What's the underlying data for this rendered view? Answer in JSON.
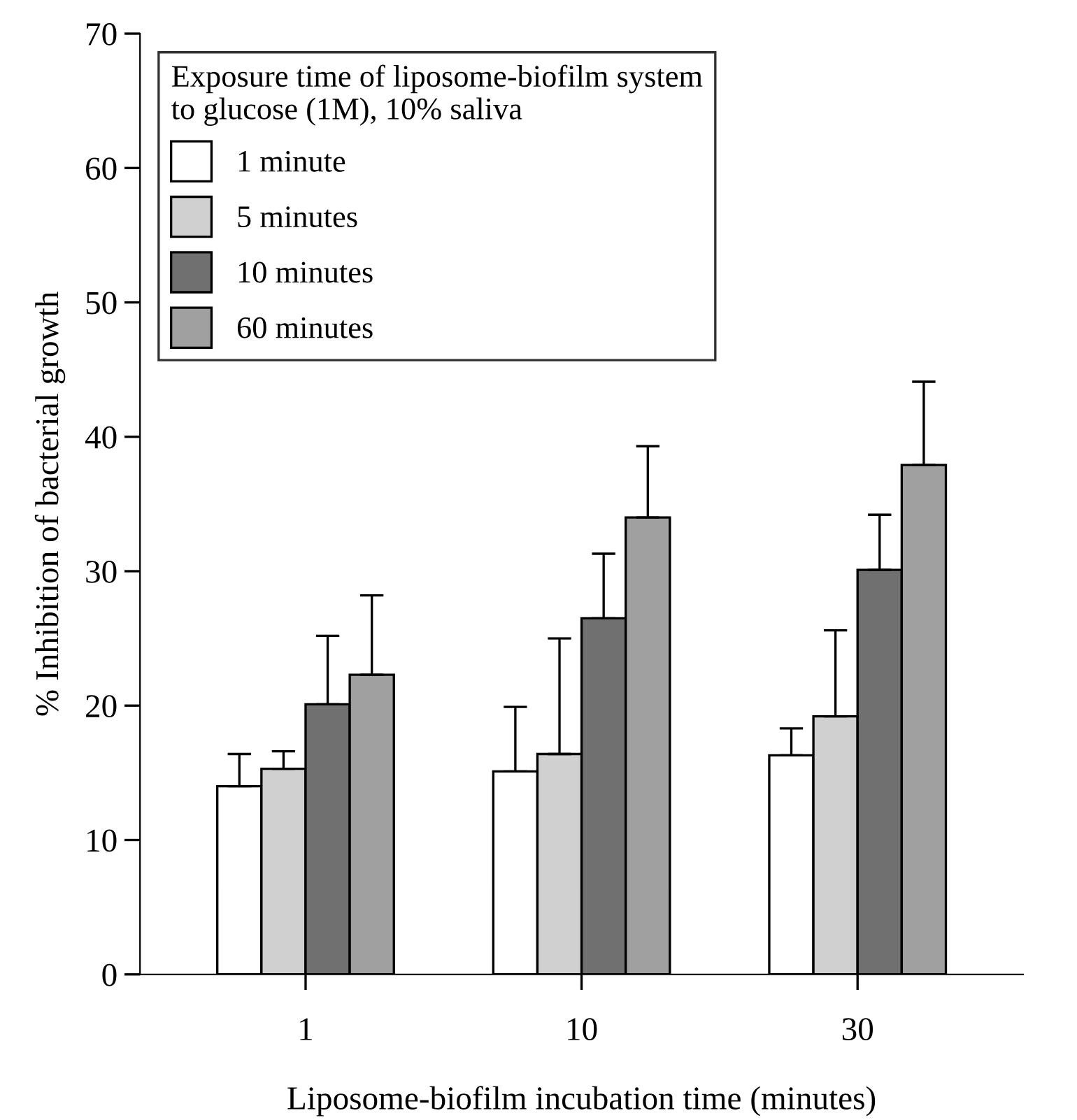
{
  "chart_data": {
    "type": "bar",
    "xlabel": "Liposome-biofilm incubation time (minutes)",
    "ylabel": "% Inhibition of bacterial growth",
    "legend_title": "Exposure time of liposome-biofilm system\nto glucose (1M), 10% saliva",
    "legend": "top left",
    "categories": [
      "1",
      "10",
      "30"
    ],
    "ylim": [
      0,
      70
    ],
    "yticks": [
      0,
      10,
      20,
      30,
      40,
      50,
      60,
      70
    ],
    "grid": false,
    "series": [
      {
        "name": "1 minute",
        "color": "#ffffff",
        "values": [
          14.0,
          15.1,
          16.3
        ],
        "errors": [
          [
            14.0,
            16.4
          ],
          [
            15.1,
            19.9
          ],
          [
            16.3,
            18.3
          ]
        ]
      },
      {
        "name": "5 minutes",
        "color": "#d0d0d0",
        "values": [
          15.3,
          16.4,
          19.2
        ],
        "errors": [
          [
            15.3,
            16.6
          ],
          [
            16.4,
            25.0
          ],
          [
            19.2,
            25.6
          ]
        ]
      },
      {
        "name": "10 minutes",
        "color": "#707070",
        "values": [
          20.1,
          26.5,
          30.1
        ],
        "errors": [
          [
            20.1,
            25.2
          ],
          [
            26.5,
            31.3
          ],
          [
            30.1,
            34.2
          ]
        ]
      },
      {
        "name": "60 minutes",
        "color": "#a0a0a0",
        "values": [
          22.3,
          34.0,
          37.9
        ],
        "errors": [
          [
            22.3,
            28.2
          ],
          [
            34.0,
            39.3
          ],
          [
            37.9,
            44.1
          ]
        ]
      }
    ]
  }
}
